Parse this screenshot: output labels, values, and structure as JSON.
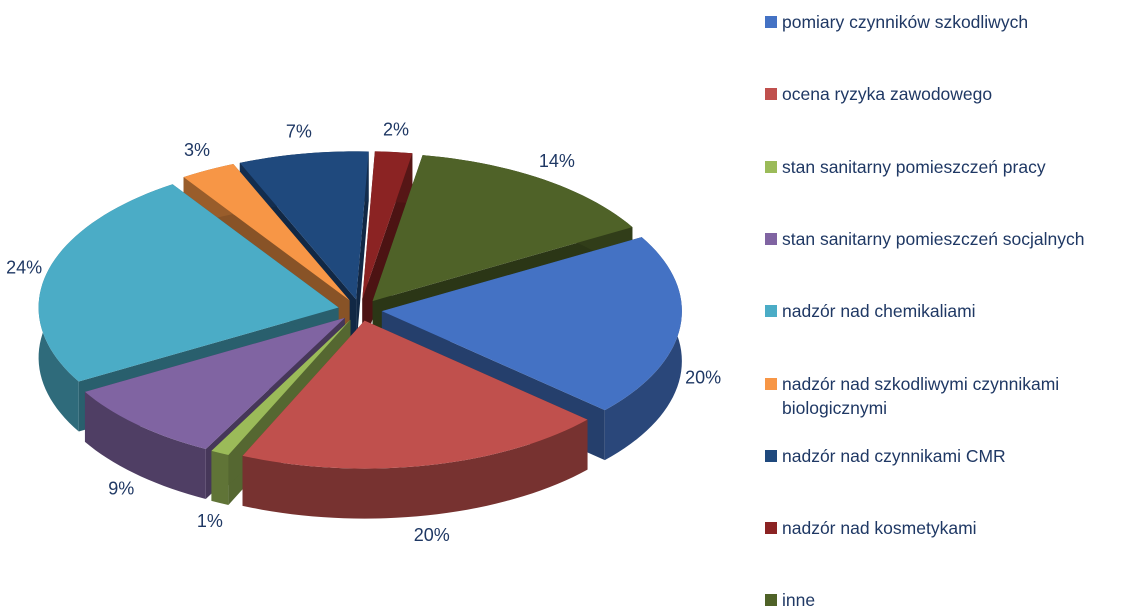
{
  "chart_data": {
    "type": "pie3d",
    "categories": [
      "pomiary czynników szkodliwych",
      "ocena ryzyka zawodowego",
      "stan sanitarny pomieszczeń pracy",
      "stan sanitarny pomieszczeń socjalnych",
      "nadzór nad chemikaliami",
      "nadzór nad szkodliwymi czynnikami biologicznymi",
      "nadzór nad czynnikami CMR",
      "nadzór nad kosmetykami",
      "inne"
    ],
    "values": [
      20,
      20,
      1,
      9,
      24,
      3,
      7,
      2,
      14
    ],
    "value_labels": [
      "20%",
      "20%",
      "1%",
      "9%",
      "24%",
      "3%",
      "7%",
      "2%",
      "14%"
    ],
    "colors": [
      "#4472c4",
      "#c0504d",
      "#9bbb59",
      "#8064a2",
      "#4bacc6",
      "#f79646",
      "#1f497d",
      "#8b2323",
      "#4f6228"
    ],
    "legend": "right"
  }
}
